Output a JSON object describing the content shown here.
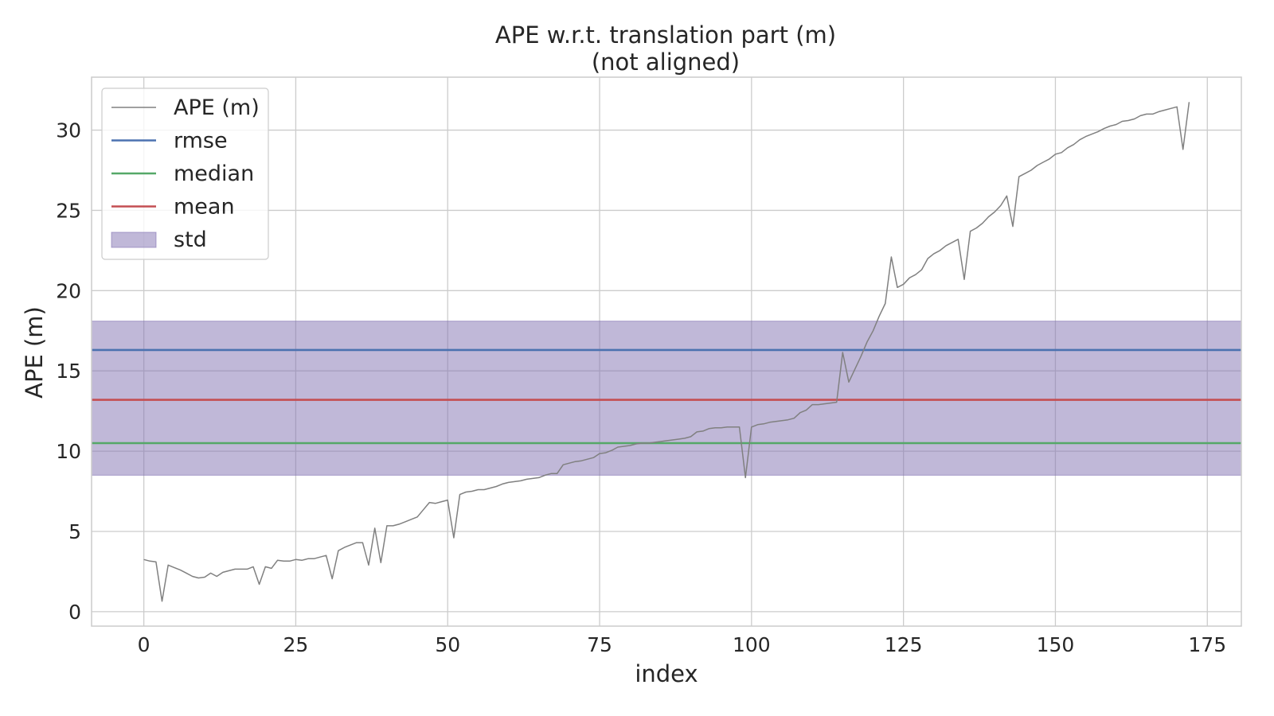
{
  "chart_data": {
    "type": "line",
    "title": "APE w.r.t. translation part (m)",
    "subtitle": "(not aligned)",
    "xlabel": "index",
    "ylabel": "APE (m)",
    "xlim": [
      -8.6,
      180.6
    ],
    "ylim": [
      -0.9,
      33.3
    ],
    "xticks": [
      0,
      25,
      50,
      75,
      100,
      125,
      150,
      175
    ],
    "yticks": [
      0,
      5,
      10,
      15,
      20,
      25,
      30
    ],
    "grid": true,
    "legend_position": "top-left",
    "colors": {
      "ape": "#808080",
      "rmse": "#4c72b0",
      "median": "#55a868",
      "mean": "#c44e52",
      "std": "#8172b2"
    },
    "legend": [
      {
        "key": "ape",
        "label": "APE (m)",
        "kind": "line"
      },
      {
        "key": "rmse",
        "label": "rmse",
        "kind": "line"
      },
      {
        "key": "median",
        "label": "median",
        "kind": "line"
      },
      {
        "key": "mean",
        "label": "mean",
        "kind": "line"
      },
      {
        "key": "std",
        "label": "std",
        "kind": "patch"
      }
    ],
    "stats": {
      "rmse": 16.3,
      "median": 10.5,
      "mean": 13.2,
      "std": 4.8
    },
    "std_band": [
      8.5,
      18.1
    ],
    "series": [
      {
        "name": "APE (m)",
        "x": [
          0,
          1,
          2,
          3,
          4,
          5,
          6,
          7,
          8,
          9,
          10,
          11,
          12,
          13,
          14,
          15,
          16,
          17,
          18,
          19,
          20,
          21,
          22,
          23,
          24,
          25,
          26,
          27,
          28,
          29,
          30,
          31,
          32,
          33,
          34,
          35,
          36,
          37,
          38,
          39,
          40,
          41,
          42,
          43,
          44,
          45,
          46,
          47,
          48,
          49,
          50,
          51,
          52,
          53,
          54,
          55,
          56,
          57,
          58,
          59,
          60,
          61,
          62,
          63,
          64,
          65,
          66,
          67,
          68,
          69,
          70,
          71,
          72,
          73,
          74,
          75,
          76,
          77,
          78,
          79,
          80,
          81,
          82,
          83,
          84,
          85,
          86,
          87,
          88,
          89,
          90,
          91,
          92,
          93,
          94,
          95,
          96,
          97,
          98,
          99,
          100,
          101,
          102,
          103,
          104,
          105,
          106,
          107,
          108,
          109,
          110,
          111,
          112,
          113,
          114,
          115,
          116,
          117,
          118,
          119,
          120,
          121,
          122,
          123,
          124,
          125,
          126,
          127,
          128,
          129,
          130,
          131,
          132,
          133,
          134,
          135,
          136,
          137,
          138,
          139,
          140,
          141,
          142,
          143,
          144,
          145,
          146,
          147,
          148,
          149,
          150,
          151,
          152,
          153,
          154,
          155,
          156,
          157,
          158,
          159,
          160,
          161,
          162,
          163,
          164,
          165,
          166,
          167,
          168,
          169,
          170,
          171,
          172
        ],
        "y": [
          3.25,
          3.15,
          3.1,
          0.65,
          2.9,
          2.75,
          2.6,
          2.4,
          2.2,
          2.1,
          2.15,
          2.4,
          2.2,
          2.45,
          2.55,
          2.65,
          2.65,
          2.65,
          2.8,
          1.7,
          2.8,
          2.7,
          3.2,
          3.15,
          3.15,
          3.25,
          3.2,
          3.3,
          3.3,
          3.4,
          3.5,
          2.05,
          3.8,
          4.0,
          4.15,
          4.3,
          4.3,
          2.9,
          5.2,
          3.05,
          5.35,
          5.35,
          5.45,
          5.6,
          5.75,
          5.9,
          6.35,
          6.8,
          6.75,
          6.85,
          6.95,
          4.6,
          7.3,
          7.45,
          7.5,
          7.6,
          7.6,
          7.7,
          7.8,
          7.95,
          8.05,
          8.1,
          8.15,
          8.25,
          8.3,
          8.35,
          8.5,
          8.6,
          8.6,
          9.15,
          9.25,
          9.35,
          9.4,
          9.5,
          9.6,
          9.85,
          9.9,
          10.05,
          10.25,
          10.3,
          10.35,
          10.45,
          10.5,
          10.5,
          10.55,
          10.6,
          10.65,
          10.7,
          10.75,
          10.8,
          10.9,
          11.2,
          11.25,
          11.4,
          11.45,
          11.45,
          11.5,
          11.5,
          11.5,
          8.35,
          11.5,
          11.65,
          11.7,
          11.8,
          11.85,
          11.9,
          11.95,
          12.05,
          12.4,
          12.55,
          12.9,
          12.9,
          12.95,
          13.0,
          13.05,
          16.15,
          14.3,
          15.1,
          15.9,
          16.8,
          17.5,
          18.4,
          19.2,
          22.1,
          20.2,
          20.4,
          20.8,
          21.0,
          21.3,
          22.0,
          22.3,
          22.5,
          22.8,
          23.0,
          23.2,
          20.7,
          23.7,
          23.9,
          24.2,
          24.6,
          24.9,
          25.3,
          25.9,
          24.0,
          27.1,
          27.3,
          27.5,
          27.8,
          28.0,
          28.2,
          28.5,
          28.6,
          28.9,
          29.1,
          29.4,
          29.6,
          29.75,
          29.9,
          30.1,
          30.25,
          30.35,
          30.55,
          30.6,
          30.7,
          30.9,
          31.0,
          31.0,
          31.15,
          31.25,
          31.35,
          31.45,
          28.8,
          31.75
        ]
      }
    ]
  }
}
